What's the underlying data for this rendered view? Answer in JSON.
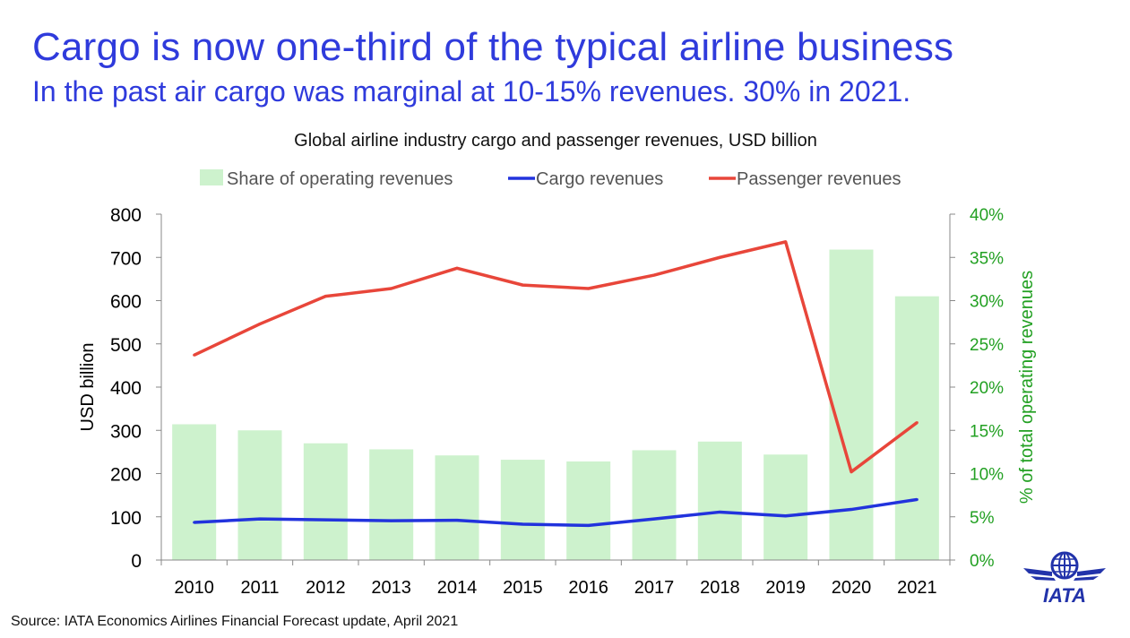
{
  "headline": "Cargo is now one-third of the typical airline business",
  "subheadline": "In the past air cargo was marginal at 10-15% revenues. 30% in 2021.",
  "source": "Source: IATA Economics Airlines Financial Forecast update, April 2021",
  "logo_text": "IATA",
  "colors": {
    "headline": "#2f3bdc",
    "bars": "#cdf2cd",
    "cargo": "#2233dd",
    "passenger": "#e8463a",
    "right_axis": "#22a022"
  },
  "chart_data": {
    "type": "bar",
    "title": "Global airline industry cargo and passenger revenues, USD billion",
    "categories": [
      "2010",
      "2011",
      "2012",
      "2013",
      "2014",
      "2015",
      "2016",
      "2017",
      "2018",
      "2019",
      "2020",
      "2021"
    ],
    "ylabel": "USD billion",
    "ylim": [
      0,
      800
    ],
    "yticks": [
      "0",
      "100",
      "200",
      "300",
      "400",
      "500",
      "600",
      "700",
      "800"
    ],
    "y2label": "% of total operating revenues",
    "y2lim": [
      0,
      40
    ],
    "y2ticks": [
      "0%",
      "5%",
      "10%",
      "15%",
      "20%",
      "25%",
      "30%",
      "35%",
      "40%"
    ],
    "legend_position": "top",
    "grid": false,
    "series": [
      {
        "name": "Share of operating revenues",
        "type": "bar",
        "axis": "right",
        "values": [
          15.7,
          15.0,
          13.5,
          12.8,
          12.1,
          11.6,
          11.4,
          12.7,
          13.7,
          12.2,
          35.9,
          30.5
        ]
      },
      {
        "name": "Cargo revenues",
        "type": "line",
        "axis": "left",
        "values": [
          87,
          95,
          93,
          91,
          92,
          83,
          80,
          95,
          111,
          102,
          117,
          140
        ]
      },
      {
        "name": "Passenger revenues",
        "type": "line",
        "axis": "left",
        "values": [
          474,
          546,
          610,
          628,
          675,
          636,
          628,
          659,
          700,
          736,
          204,
          318
        ]
      }
    ]
  }
}
